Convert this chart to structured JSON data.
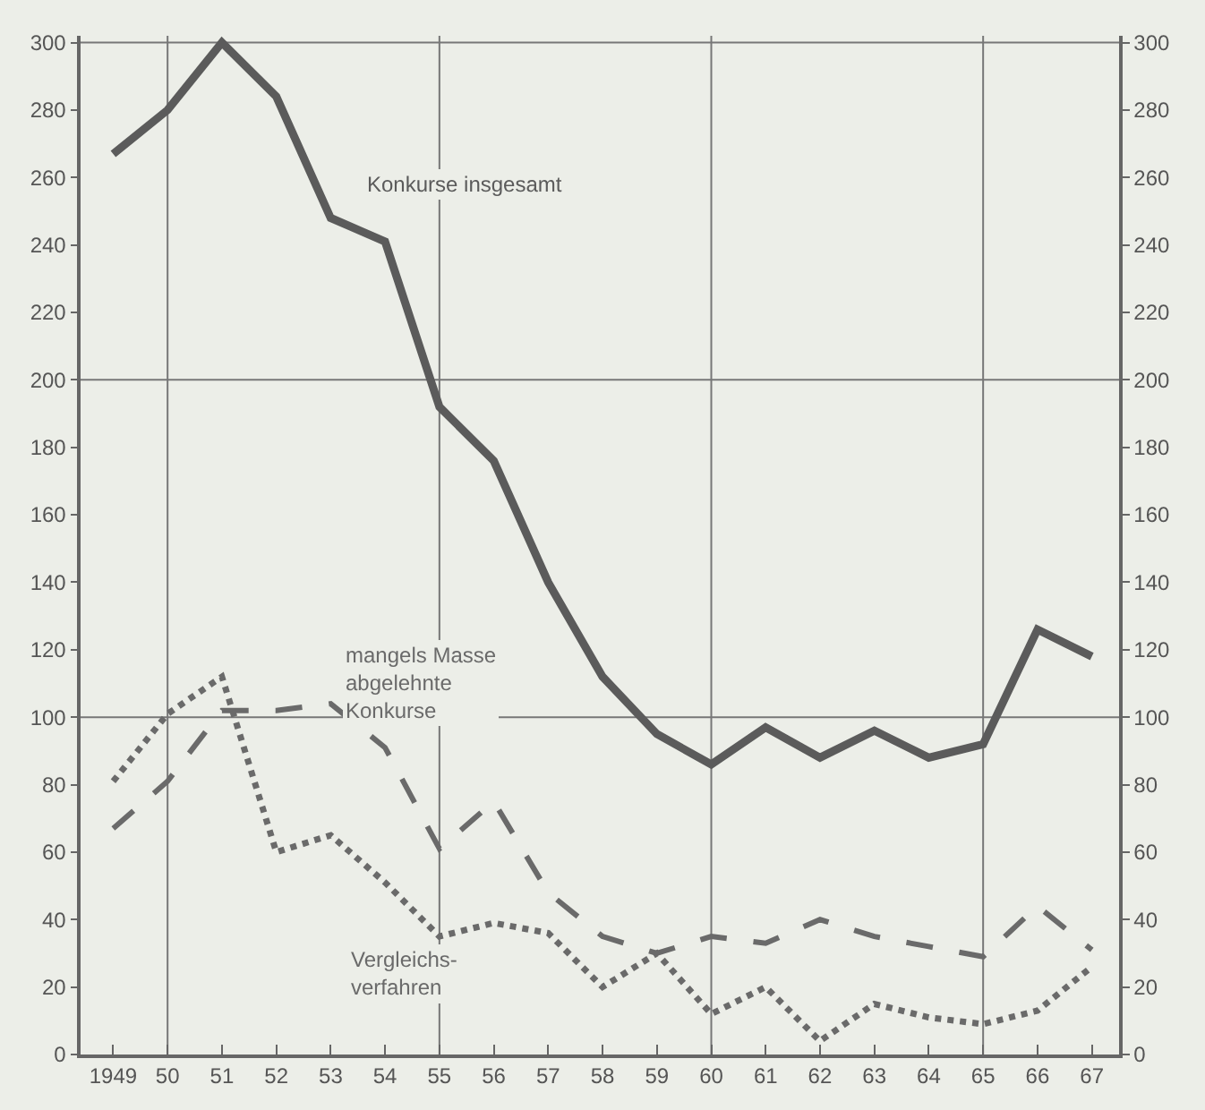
{
  "chart_data": {
    "type": "line",
    "x": [
      1949,
      1950,
      1951,
      1952,
      1953,
      1954,
      1955,
      1956,
      1957,
      1958,
      1959,
      1960,
      1961,
      1962,
      1963,
      1964,
      1965,
      1966,
      1967
    ],
    "series": [
      {
        "name": "Konkurse insgesamt",
        "color": "#5b5b5b",
        "line_style": "solid",
        "values": [
          267,
          280,
          300,
          284,
          248,
          241,
          192,
          176,
          140,
          112,
          95,
          86,
          97,
          88,
          96,
          88,
          92,
          126,
          118
        ]
      },
      {
        "name": "mangels Masse\nabgelehnte\nKonkurse",
        "color": "#6a6a6a",
        "line_style": "dashed",
        "values": [
          67,
          81,
          102,
          102,
          104,
          91,
          61,
          75,
          48,
          35,
          30,
          35,
          33,
          40,
          35,
          32,
          29,
          44,
          31
        ]
      },
      {
        "name": "Vergleichs-\nverfahren",
        "color": "#6a6a6a",
        "line_style": "dotted",
        "values": [
          81,
          101,
          112,
          60,
          65,
          51,
          35,
          39,
          36,
          20,
          30,
          12,
          20,
          4,
          15,
          11,
          9,
          13,
          26
        ]
      }
    ],
    "xlim": [
      1948.4,
      1967.5
    ],
    "xticks": [
      {
        "value": 1949,
        "label": "1949"
      },
      {
        "value": 1950,
        "label": "50"
      },
      {
        "value": 1951,
        "label": "51"
      },
      {
        "value": 1952,
        "label": "52"
      },
      {
        "value": 1953,
        "label": "53"
      },
      {
        "value": 1954,
        "label": "54"
      },
      {
        "value": 1955,
        "label": "55"
      },
      {
        "value": 1956,
        "label": "56"
      },
      {
        "value": 1957,
        "label": "57"
      },
      {
        "value": 1958,
        "label": "58"
      },
      {
        "value": 1959,
        "label": "59"
      },
      {
        "value": 1960,
        "label": "60"
      },
      {
        "value": 1961,
        "label": "61"
      },
      {
        "value": 1962,
        "label": "62"
      },
      {
        "value": 1963,
        "label": "63"
      },
      {
        "value": 1964,
        "label": "64"
      },
      {
        "value": 1965,
        "label": "65"
      },
      {
        "value": 1966,
        "label": "66"
      },
      {
        "value": 1967,
        "label": "67"
      }
    ],
    "ylim": [
      0,
      302
    ],
    "yticks": [
      0,
      20,
      40,
      60,
      80,
      100,
      120,
      140,
      160,
      180,
      200,
      220,
      240,
      260,
      280,
      300
    ],
    "y2lim": [
      0,
      302
    ],
    "y2ticks": [
      0,
      20,
      40,
      60,
      80,
      100,
      120,
      140,
      160,
      180,
      200,
      220,
      240,
      260,
      280,
      300
    ],
    "ref_lines": [
      {
        "axis": "x",
        "value": 1950
      },
      {
        "axis": "x",
        "value": 1955
      },
      {
        "axis": "x",
        "value": 1960
      },
      {
        "axis": "x",
        "value": 1965
      },
      {
        "axis": "y",
        "value": 100
      },
      {
        "axis": "y",
        "value": 200
      },
      {
        "axis": "y",
        "value": 300
      }
    ],
    "grid": false,
    "legend": false,
    "marker": "none"
  }
}
